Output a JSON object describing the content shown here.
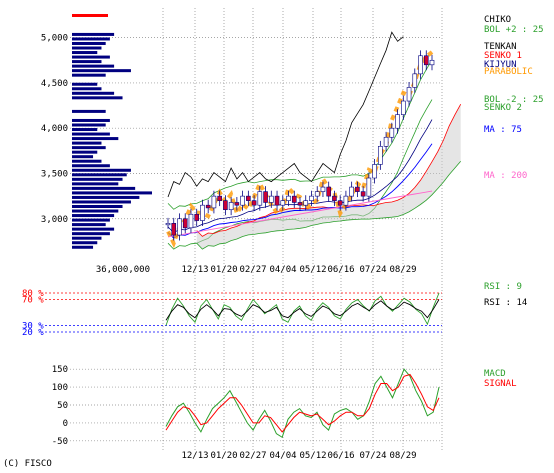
{
  "credit": "(C) FISCO",
  "volume_label": "36,000,000",
  "chart_data": [
    {
      "type": "line",
      "name": "price",
      "x_ticks": [
        "12/13",
        "01/20",
        "02/27",
        "04/04",
        "05/12",
        "06/16",
        "07/24",
        "08/29"
      ],
      "y_ticks": [
        "5,000",
        "4,500",
        "4,000",
        "3,500",
        "3,000"
      ],
      "y_tick_values": [
        5000,
        4500,
        4000,
        3500,
        3000
      ],
      "ylim": [
        2600,
        5250
      ],
      "grid": true,
      "legend": [
        {
          "label": "CHIKO",
          "color": "#000000"
        },
        {
          "label": "BOL +2 : 25",
          "color": "#2ca02c"
        },
        {
          "label": "TENKAN",
          "color": "#000000"
        },
        {
          "label": "SENKO 1",
          "color": "#ff0000"
        },
        {
          "label": "KIJYUN",
          "color": "#000080"
        },
        {
          "label": "PARABOLIC",
          "color": "#ff9900"
        },
        {
          "label": "BOL -2 : 25",
          "color": "#2ca02c"
        },
        {
          "label": "SENKO 2",
          "color": "#2ca02c"
        },
        {
          "label": "MA : 75",
          "color": "#0000ff"
        },
        {
          "label": "MA : 200",
          "color": "#ff66cc"
        }
      ],
      "price_series": [
        {
          "name": "close",
          "values": [
            2950,
            2820,
            3000,
            2900,
            3050,
            2980,
            3150,
            3120,
            3250,
            3200,
            3100,
            3180,
            3150,
            3250,
            3200,
            3150,
            3300,
            3180,
            3250,
            3150,
            3200,
            3250,
            3180,
            3150,
            3200,
            3250,
            3300,
            3350,
            3250,
            3200,
            3150,
            3250,
            3350,
            3300,
            3250,
            3450,
            3600,
            3800,
            3900,
            4000,
            4150,
            4300,
            4450,
            4600,
            4800,
            4700,
            4750
          ]
        }
      ],
      "volume_profile": [
        {
          "price": 5030,
          "volume": 0.5
        },
        {
          "price": 4980,
          "volume": 0.45
        },
        {
          "price": 4930,
          "volume": 0.4
        },
        {
          "price": 4880,
          "volume": 0.35
        },
        {
          "price": 4830,
          "volume": 0.3
        },
        {
          "price": 4780,
          "volume": 0.45
        },
        {
          "price": 4730,
          "volume": 0.35
        },
        {
          "price": 4680,
          "volume": 0.5
        },
        {
          "price": 4630,
          "volume": 0.7
        },
        {
          "price": 4580,
          "volume": 0.4
        },
        {
          "price": 4480,
          "volume": 0.3
        },
        {
          "price": 4430,
          "volume": 0.35
        },
        {
          "price": 4380,
          "volume": 0.5
        },
        {
          "price": 4330,
          "volume": 0.6
        },
        {
          "price": 4180,
          "volume": 0.4
        },
        {
          "price": 4080,
          "volume": 0.45
        },
        {
          "price": 4030,
          "volume": 0.4
        },
        {
          "price": 3980,
          "volume": 0.3
        },
        {
          "price": 3930,
          "volume": 0.45
        },
        {
          "price": 3880,
          "volume": 0.55
        },
        {
          "price": 3830,
          "volume": 0.35
        },
        {
          "price": 3780,
          "volume": 0.4
        },
        {
          "price": 3730,
          "volume": 0.3
        },
        {
          "price": 3680,
          "volume": 0.25
        },
        {
          "price": 3630,
          "volume": 0.35
        },
        {
          "price": 3580,
          "volume": 0.45
        },
        {
          "price": 3530,
          "volume": 0.7
        },
        {
          "price": 3480,
          "volume": 0.65
        },
        {
          "price": 3430,
          "volume": 0.6
        },
        {
          "price": 3380,
          "volume": 0.55
        },
        {
          "price": 3330,
          "volume": 0.75
        },
        {
          "price": 3280,
          "volume": 0.95
        },
        {
          "price": 3230,
          "volume": 0.8
        },
        {
          "price": 3180,
          "volume": 0.7
        },
        {
          "price": 3130,
          "volume": 0.6
        },
        {
          "price": 3080,
          "volume": 0.55
        },
        {
          "price": 3030,
          "volume": 0.5
        },
        {
          "price": 2980,
          "volume": 0.45
        },
        {
          "price": 2930,
          "volume": 0.4
        },
        {
          "price": 2880,
          "volume": 0.5
        },
        {
          "price": 2830,
          "volume": 0.45
        },
        {
          "price": 2780,
          "volume": 0.35
        },
        {
          "price": 2730,
          "volume": 0.3
        },
        {
          "price": 2680,
          "volume": 0.25
        }
      ]
    },
    {
      "type": "line",
      "name": "rsi",
      "ylim": [
        0,
        100
      ],
      "levels": [
        {
          "label": "80 %",
          "value": 80,
          "color": "#ff0000"
        },
        {
          "label": "70 %",
          "value": 70,
          "color": "#ff0000"
        },
        {
          "label": "30 %",
          "value": 30,
          "color": "#0000ff"
        },
        {
          "label": "20 %",
          "value": 20,
          "color": "#0000ff"
        }
      ],
      "legend": [
        {
          "label": "RSI : 9",
          "color": "#2ca02c"
        },
        {
          "label": "RSI : 14",
          "color": "#000000"
        }
      ],
      "series": [
        {
          "values": [
            30,
            55,
            72,
            60,
            45,
            35,
            60,
            70,
            55,
            40,
            62,
            58,
            45,
            38,
            55,
            70,
            60,
            48,
            55,
            62,
            40,
            35,
            52,
            60,
            45,
            38,
            55,
            65,
            58,
            45,
            40,
            55,
            65,
            70,
            60,
            52,
            68,
            75,
            60,
            52,
            62,
            72,
            66,
            55,
            48,
            32,
            58,
            80
          ]
        },
        {
          "values": [
            38,
            52,
            62,
            58,
            48,
            42,
            55,
            62,
            55,
            45,
            56,
            55,
            48,
            44,
            52,
            62,
            58,
            50,
            53,
            58,
            45,
            42,
            50,
            56,
            48,
            44,
            52,
            60,
            56,
            48,
            45,
            52,
            60,
            64,
            58,
            53,
            62,
            68,
            60,
            54,
            58,
            66,
            62,
            56,
            52,
            42,
            55,
            70
          ]
        }
      ]
    },
    {
      "type": "line",
      "name": "macd",
      "x_ticks": [
        "12/13",
        "01/20",
        "02/27",
        "04/04",
        "05/12",
        "06/16",
        "07/24",
        "08/29"
      ],
      "y_ticks": [
        "150",
        "100",
        "50",
        "0",
        "-50"
      ],
      "y_tick_values": [
        150,
        100,
        50,
        0,
        -50
      ],
      "ylim": [
        -70,
        170
      ],
      "legend": [
        {
          "label": "MACD",
          "color": "#2ca02c"
        },
        {
          "label": "SIGNAL",
          "color": "#ff0000"
        }
      ],
      "series": [
        {
          "values": [
            -10,
            20,
            45,
            55,
            30,
            0,
            -25,
            10,
            40,
            55,
            70,
            90,
            60,
            30,
            0,
            -20,
            10,
            35,
            5,
            -30,
            -40,
            10,
            30,
            40,
            20,
            15,
            30,
            -5,
            -20,
            25,
            35,
            40,
            30,
            10,
            20,
            60,
            110,
            130,
            100,
            70,
            110,
            150,
            130,
            90,
            60,
            20,
            30,
            100
          ]
        },
        {
          "values": [
            -20,
            5,
            30,
            45,
            40,
            20,
            -5,
            0,
            20,
            40,
            55,
            70,
            70,
            50,
            25,
            0,
            0,
            20,
            15,
            -5,
            -25,
            -5,
            15,
            30,
            25,
            20,
            25,
            10,
            -5,
            5,
            20,
            30,
            30,
            20,
            20,
            40,
            80,
            110,
            110,
            90,
            100,
            130,
            135,
            110,
            80,
            45,
            35,
            70
          ]
        }
      ]
    }
  ]
}
